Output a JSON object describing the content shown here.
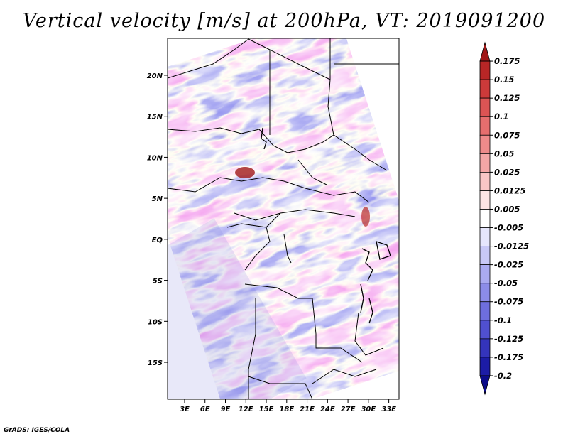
{
  "title": "Vertical velocity [m/s] at 200hPa, VT: 2019091200",
  "credit": "GrADS: IGES/COLA",
  "map": {
    "lat_labels": [
      "20N",
      "15N",
      "10N",
      "5N",
      "EQ",
      "5S",
      "10S",
      "15S"
    ],
    "lat_values": [
      20,
      15,
      10,
      5,
      0,
      -5,
      -10,
      -15
    ],
    "lon_labels": [
      "3E",
      "6E",
      "9E",
      "12E",
      "15E",
      "18E",
      "21E",
      "24E",
      "27E",
      "30E",
      "33E"
    ],
    "lon_values": [
      3,
      6,
      9,
      12,
      15,
      18,
      21,
      24,
      27,
      30,
      33
    ],
    "lon_range": [
      0.5,
      34.5
    ],
    "lat_range": [
      -19.5,
      24.5
    ]
  },
  "colorbar": {
    "levels": [
      "0.175",
      "0.15",
      "0.125",
      "0.1",
      "0.075",
      "0.05",
      "0.025",
      "0.0125",
      "0.005",
      "-0.005",
      "-0.0125",
      "-0.025",
      "-0.05",
      "-0.075",
      "-0.1",
      "-0.125",
      "-0.175",
      "-0.2"
    ],
    "colors": [
      "#a01818",
      "#b82626",
      "#cc3a3a",
      "#dc5454",
      "#e66e6e",
      "#ee8a8a",
      "#f4a6a6",
      "#f9c6c6",
      "#fde4e4",
      "#ffffff",
      "#e6e6fc",
      "#c8c8f6",
      "#aaaaf0",
      "#8c8ce8",
      "#6e6ede",
      "#5050d0",
      "#3434bc",
      "#1c1ca6",
      "#0c0c8a"
    ]
  },
  "colors": {
    "red": "#e04848",
    "blue": "#5858d8",
    "white": "#ffffff",
    "border": "#000000"
  }
}
